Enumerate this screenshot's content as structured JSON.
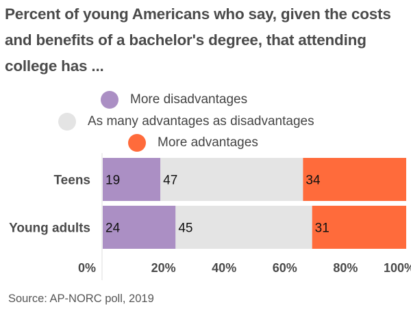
{
  "title": "Percent of young Americans who say, given the costs and benefits of a bachelor's degree, that attending college has ...",
  "source": "Source: AP-NORC poll, 2019",
  "chart_data": {
    "type": "bar",
    "orientation": "horizontal",
    "stacked": true,
    "title": "Percent of young Americans who say, given the costs and benefits of a bachelor's degree, that attending college has ...",
    "categories": [
      "Teens",
      "Young adults"
    ],
    "series": [
      {
        "name": "More disadvantages",
        "color": "#ab8fc4",
        "values": [
          19,
          24
        ]
      },
      {
        "name": "As many advantages as disadvantages",
        "color": "#e4e4e4",
        "values": [
          47,
          45
        ]
      },
      {
        "name": "More advantages",
        "color": "#ff6b3b",
        "values": [
          34,
          31
        ]
      }
    ],
    "xlim": [
      0,
      100
    ],
    "xticks": [
      "0%",
      "20%",
      "40%",
      "60%",
      "80%",
      "100%"
    ],
    "xtick_values": [
      0,
      20,
      40,
      60,
      80,
      100
    ],
    "xlabel": "",
    "ylabel": "",
    "legend_position": "top-center",
    "grid": false,
    "data_labels": true
  }
}
